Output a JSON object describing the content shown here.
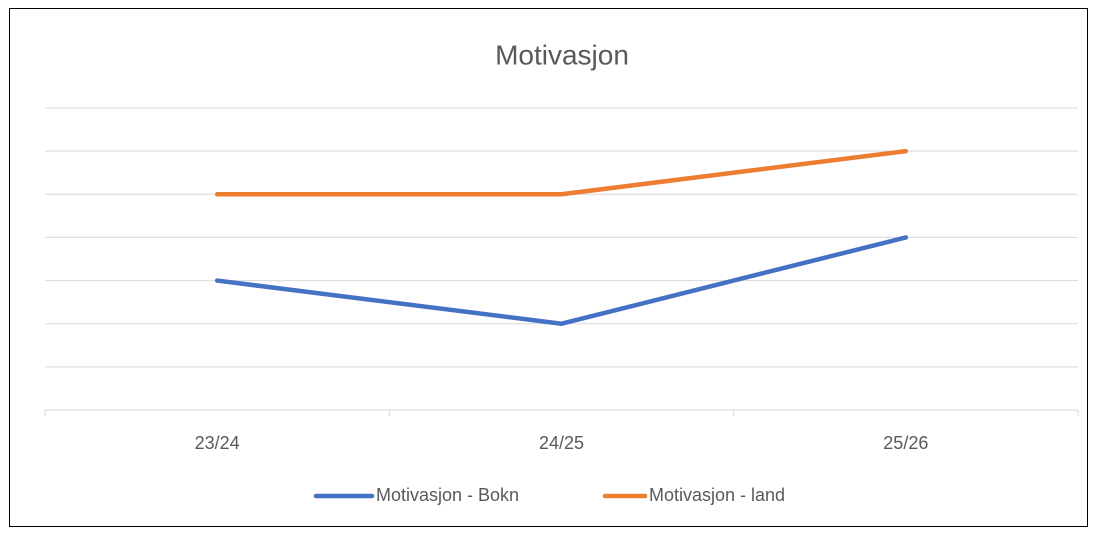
{
  "chart_data": {
    "type": "line",
    "title": "Motivasjon",
    "categories": [
      "23/24",
      "24/25",
      "25/26"
    ],
    "series": [
      {
        "name": "Motivasjon - Bokn",
        "color": "#4472c4",
        "values": [
          3,
          2,
          4
        ]
      },
      {
        "name": "Motivasjon - land",
        "color": "#ed7d31",
        "values": [
          5,
          5,
          6
        ]
      }
    ],
    "ylim": [
      0,
      7
    ],
    "yticks": [
      1,
      2,
      3,
      4,
      5,
      6,
      7
    ],
    "grid": true,
    "legend": "bottom"
  }
}
